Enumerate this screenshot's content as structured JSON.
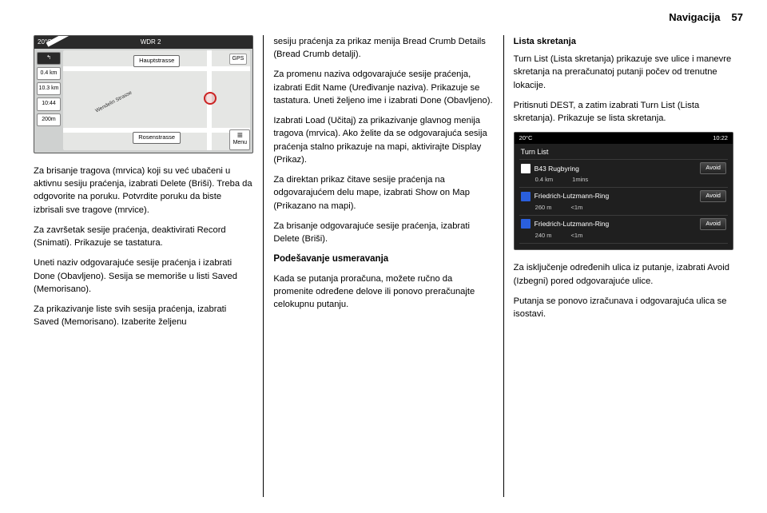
{
  "header": {
    "label": "Navigacija",
    "page": "57"
  },
  "map": {
    "topbar_left": "20°C",
    "topbar_center": "WDR 2",
    "street_top": "Hauptstrasse",
    "street_bottom": "Rosenstrasse",
    "street_diag": "Wendelin Strasse",
    "gps": "GPS",
    "side": {
      "arrow": "↰",
      "dist_next": "0.4 km",
      "dist_total": "10.3 km",
      "time": "10:44",
      "scale": "200m"
    },
    "menu_label": "Menu"
  },
  "turnlist": {
    "topbar_left": "20°C",
    "topbar_right": "10:22",
    "title": "Turn List",
    "avoid_label": "Avoid",
    "rows": [
      {
        "icon": "B43",
        "icon_color": "#ffffff",
        "name": "B43 Rugbyring",
        "dist": "0.4 km",
        "time": "1mins"
      },
      {
        "icon": "",
        "icon_color": "#2a5fdd",
        "name": "Friedrich-Lutzmann-Ring",
        "dist": "260 m",
        "time": "<1m"
      },
      {
        "icon": "",
        "icon_color": "#2a5fdd",
        "name": "Friedrich-Lutzmann-Ring",
        "dist": "240 m",
        "time": "<1m"
      }
    ]
  },
  "col1": {
    "p1": "Za brisanje tragova (mrvica) koji su već ubačeni u aktivnu sesiju praćenja, izabrati Delete (Briši). Treba da odgovorite na poruku. Potvrdite poruku da biste izbrisali sve tragove (mrvice).",
    "p2": "Za završetak sesije praćenja, deaktivirati Record (Snimati). Prikazuje se tastatura.",
    "p3": "Uneti naziv odgovarajuće sesije praćenja i izabrati Done (Obavljeno). Sesija se memoriše u listi Saved (Memorisano).",
    "p4": "Za prikazivanje liste svih sesija praćenja, izabrati Saved (Memorisano). Izaberite željenu"
  },
  "col2": {
    "p1": "sesiju praćenja za prikaz menija Bread Crumb Details (Bread Crumb detalji).",
    "p2": "Za promenu naziva odgovarajuće sesije praćenja, izabrati Edit Name (Uređivanje naziva). Prikazuje se tastatura. Uneti željeno ime i izabrati Done (Obavljeno).",
    "p3": "Izabrati Load (Učitaj) za prikazivanje glavnog menija tragova (mrvica). Ako želite da se odgovarajuća sesija praćenja stalno prikazuje na mapi, aktivirajte Display (Prikaz).",
    "p4": "Za direktan prikaz čitave sesije praćenja na odgovarajućem delu mape, izabrati Show on Map (Prikazano na mapi).",
    "p5": "Za brisanje odgovarajuće sesije praćenja, izabrati Delete (Briši).",
    "heading": "Podešavanje usmeravanja",
    "p6": "Kada se putanja proračuna, možete ručno da promenite određene delove ili ponovo preračunajte celokupnu putanju."
  },
  "col3": {
    "sub": "Lista skretanja",
    "p1": "Turn List (Lista skretanja) prikazuje sve ulice i manevre skretanja na preračunatoj putanji počev od trenutne lokacije.",
    "p2": "Pritisnuti DEST, a zatim izabrati Turn List (Lista skretanja). Prikazuje se lista skretanja.",
    "p3": "Za isključenje određenih ulica iz putanje, izabrati Avoid (Izbegni) pored odgovarajuće ulice.",
    "p4": "Putanja se ponovo izračunava i odgovarajuća ulica se isostavi."
  }
}
